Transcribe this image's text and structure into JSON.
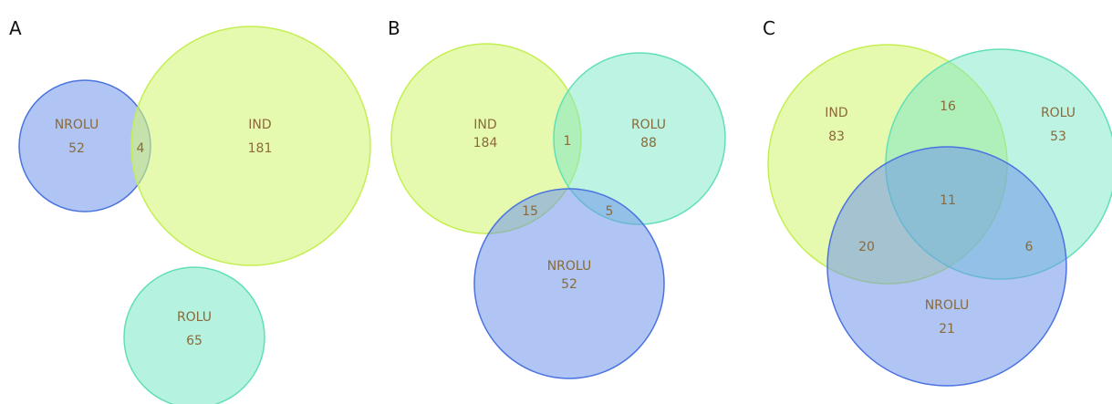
{
  "colors": {
    "IND": "#d4f57a",
    "ROLU": "#79e8c6",
    "NROLU": "#6f95ea",
    "IND_stroke": "#c4ef52",
    "ROLU_stroke": "#62dfb8",
    "NROLU_stroke": "#4a73e0",
    "text": "#8a6a3a"
  },
  "panels": [
    {
      "letter": "A",
      "sets": [
        {
          "name": "NROLU",
          "count": "52"
        },
        {
          "name": "IND",
          "count": "181"
        },
        {
          "name": "ROLU",
          "count": "65"
        }
      ],
      "overlaps": [
        {
          "sets": [
            "NROLU",
            "IND"
          ],
          "count": "4"
        }
      ]
    },
    {
      "letter": "B",
      "sets": [
        {
          "name": "IND",
          "count": "184"
        },
        {
          "name": "ROLU",
          "count": "88"
        },
        {
          "name": "NROLU",
          "count": "52"
        }
      ],
      "overlaps": [
        {
          "sets": [
            "IND",
            "ROLU"
          ],
          "count": "1"
        },
        {
          "sets": [
            "IND",
            "NROLU"
          ],
          "count": "15"
        },
        {
          "sets": [
            "ROLU",
            "NROLU"
          ],
          "count": "5"
        }
      ]
    },
    {
      "letter": "C",
      "sets": [
        {
          "name": "IND",
          "count": "83"
        },
        {
          "name": "ROLU",
          "count": "53"
        },
        {
          "name": "NROLU",
          "count": "21"
        }
      ],
      "overlaps": [
        {
          "sets": [
            "IND",
            "ROLU"
          ],
          "count": "16"
        },
        {
          "sets": [
            "IND",
            "ROLU",
            "NROLU"
          ],
          "count": "11"
        },
        {
          "sets": [
            "IND",
            "NROLU"
          ],
          "count": "20"
        },
        {
          "sets": [
            "ROLU",
            "NROLU"
          ],
          "count": "6"
        }
      ]
    }
  ]
}
